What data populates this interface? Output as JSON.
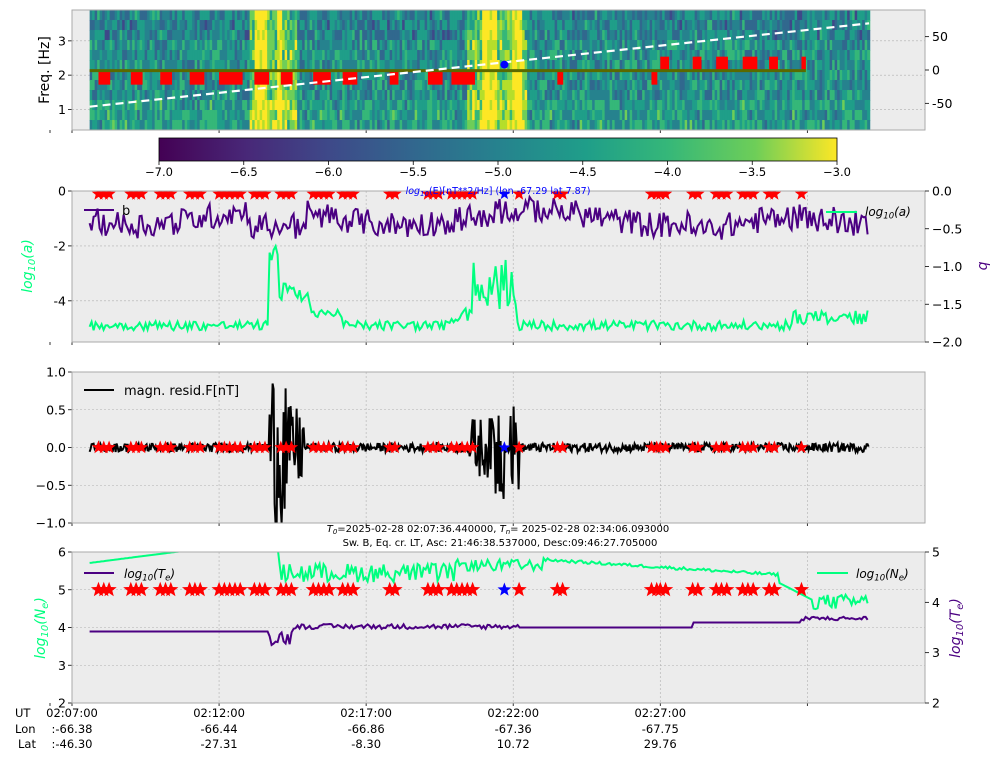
{
  "colors": {
    "panel_bg": "#ececec",
    "grid": "#b0b0b0",
    "red": "#ff0000",
    "blue": "#0000ff",
    "green": "#00ff7f",
    "purple": "#4b0082",
    "black": "#000000",
    "white": "#ffffff",
    "olive": "#5a6a00",
    "ann_blue": "#0000ff"
  },
  "chart_data": [
    {
      "type": "heatmap",
      "id": "spectrogram",
      "ylabel": "Freq. [Hz]",
      "ylim": [
        0.4,
        3.9
      ],
      "yticks": [
        1,
        2,
        3
      ],
      "y2lim": [
        -90,
        90
      ],
      "y2ticks": [
        -50,
        0,
        50
      ],
      "colorbar": {
        "range": [
          -7.0,
          -3.0
        ],
        "ticks": [
          "−7.0",
          "−6.5",
          "−6.0",
          "−5.5",
          "−5.0",
          "−4.5",
          "−4.0",
          "−3.5",
          "−3.0"
        ],
        "label": "log10(E)[nT**2/Hz] (lon -67.29 lat 7.87)",
        "label_prefix": "log",
        "label_sub": "10",
        "label_rest": "(E)[nT**2/Hz] (lon -67.29 lat 7.87)",
        "colormap": "viridis"
      },
      "grid": true
    },
    {
      "type": "line",
      "id": "fit_params",
      "ylabel": "log10(a)",
      "ylabel_prefix": "log",
      "ylabel_sub": "10",
      "ylabel_rest": "(a)",
      "y2label": "b",
      "ylim": [
        -5.5,
        0
      ],
      "yticks": [
        0,
        -2,
        -4
      ],
      "y2lim": [
        -2.0,
        0.0
      ],
      "y2ticks": [
        "0.0",
        "−0.5",
        "−1.0",
        "−1.5",
        "−2.0"
      ],
      "series": [
        {
          "name": "b",
          "axis": "right",
          "color": "purple"
        },
        {
          "name": "log10(a)",
          "name_prefix": "log",
          "name_sub": "10",
          "name_rest": "(a)",
          "axis": "left",
          "color": "green"
        }
      ],
      "legend": [
        "top-left",
        "top-right"
      ],
      "grid": true
    },
    {
      "type": "line",
      "id": "mag_resid",
      "ylim": [
        -1.0,
        1.0
      ],
      "yticks": [
        "1.0",
        "0.5",
        "0.0",
        "−0.5",
        "−1.0"
      ],
      "series": [
        {
          "name": "magn. resid.F[nT]",
          "color": "black"
        }
      ],
      "legend": "top-left",
      "grid": true
    },
    {
      "type": "line",
      "id": "plasma",
      "ylabel": "log10(Ne)",
      "ylabel_prefix": "log",
      "ylabel_sub": "10",
      "ylabel_rest": "(N",
      "ylabel_sub2": "e",
      "ylabel_tail": ")",
      "y2label": "log10(Te)",
      "y2label_rest": "(T",
      "ylim": [
        2,
        6
      ],
      "yticks": [
        2,
        3,
        4,
        5,
        6
      ],
      "y2lim": [
        2,
        5
      ],
      "y2ticks": [
        2,
        3,
        4,
        5
      ],
      "series": [
        {
          "name": "log10(Te)",
          "name_rest": "(T",
          "axis": "right",
          "color": "purple"
        },
        {
          "name": "log10(Ne)",
          "name_rest": "(N",
          "axis": "left",
          "color": "green"
        }
      ],
      "legend": [
        "top-left",
        "top-right"
      ],
      "grid": true
    }
  ],
  "header_info": {
    "t0_label": "T",
    "t0_sub": "0",
    "t0_value": "=2025-02-28 02:07:36.440000, ",
    "tn_label": "T",
    "tn_sub": "n",
    "tn_value": "= 2025-02-28 02:34:06.093000",
    "line2": "Sw. B, Eq. cr. LT, Asc: 21:46:38.537000, Desc:09:46:27.705000"
  },
  "time_axis": {
    "start_minutes": 0,
    "end_minutes": 29,
    "data_start": 0.6,
    "data_end": 27.1,
    "row_labels": [
      "UT",
      "Lon",
      "Lat"
    ],
    "ticks": [
      {
        "ut": "02:07:00",
        "lon": ":-66.38",
        "lat": ":-46.30"
      },
      {
        "ut": "02:12:00",
        "lon": "-66.44",
        "lat": "-27.31"
      },
      {
        "ut": "02:17:00",
        "lon": "-66.86",
        "lat": "-8.30"
      },
      {
        "ut": "02:22:00",
        "lon": "-67.36",
        "lat": "10.72"
      },
      {
        "ut": "02:27:00",
        "lon": "-67.75",
        "lat": "29.76"
      }
    ]
  },
  "events": {
    "red_segments": [
      [
        0.9,
        1.3
      ],
      [
        2.0,
        2.4
      ],
      [
        3.0,
        3.4
      ],
      [
        4.0,
        4.5
      ],
      [
        5.0,
        5.8
      ],
      [
        6.2,
        6.7
      ],
      [
        7.1,
        7.5
      ],
      [
        8.2,
        8.8
      ],
      [
        9.2,
        9.7
      ],
      [
        10.8,
        11.1
      ],
      [
        12.1,
        12.6
      ],
      [
        12.9,
        13.7
      ],
      [
        16.5,
        16.7
      ],
      [
        19.7,
        19.9
      ],
      [
        20.0,
        20.3
      ],
      [
        21.1,
        21.4
      ],
      [
        21.9,
        22.3
      ],
      [
        22.8,
        23.3
      ],
      [
        23.7,
        24.0
      ],
      [
        24.8,
        24.95
      ]
    ],
    "blue_marker": 14.7,
    "red_star_extra": 15.2
  }
}
